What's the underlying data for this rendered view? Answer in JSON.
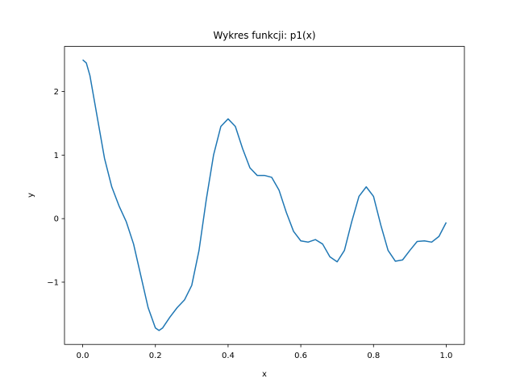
{
  "chart_data": {
    "type": "line",
    "title": "Wykres funkcji: p1(x)",
    "xlabel": "x",
    "ylabel": "y",
    "x": [
      0.0,
      0.01,
      0.02,
      0.04,
      0.06,
      0.08,
      0.1,
      0.12,
      0.14,
      0.16,
      0.18,
      0.2,
      0.21,
      0.22,
      0.24,
      0.26,
      0.28,
      0.3,
      0.32,
      0.34,
      0.36,
      0.38,
      0.4,
      0.42,
      0.44,
      0.46,
      0.48,
      0.5,
      0.52,
      0.54,
      0.56,
      0.58,
      0.6,
      0.62,
      0.64,
      0.66,
      0.68,
      0.7,
      0.72,
      0.74,
      0.76,
      0.78,
      0.8,
      0.82,
      0.84,
      0.86,
      0.88,
      0.9,
      0.92,
      0.94,
      0.96,
      0.98,
      1.0
    ],
    "values": [
      2.5,
      2.45,
      2.25,
      1.6,
      0.95,
      0.5,
      0.2,
      -0.05,
      -0.4,
      -0.9,
      -1.4,
      -1.72,
      -1.76,
      -1.72,
      -1.55,
      -1.4,
      -1.28,
      -1.05,
      -0.5,
      0.3,
      1.0,
      1.45,
      1.57,
      1.45,
      1.1,
      0.8,
      0.68,
      0.68,
      0.65,
      0.45,
      0.1,
      -0.2,
      -0.35,
      -0.37,
      -0.33,
      -0.4,
      -0.6,
      -0.68,
      -0.5,
      -0.05,
      0.35,
      0.5,
      0.35,
      -0.1,
      -0.5,
      -0.67,
      -0.65,
      -0.5,
      -0.36,
      -0.35,
      -0.37,
      -0.28,
      -0.06
    ],
    "color": "#1f77b4",
    "xlim": [
      -0.05,
      1.05
    ],
    "xticks": [
      {
        "value": 0.0,
        "label": "0.0"
      },
      {
        "value": 0.2,
        "label": "0.2"
      },
      {
        "value": 0.4,
        "label": "0.4"
      },
      {
        "value": 0.6,
        "label": "0.6"
      },
      {
        "value": 0.8,
        "label": "0.8"
      },
      {
        "value": 1.0,
        "label": "1.0"
      }
    ],
    "ylim": [
      -1.98,
      2.71
    ],
    "yticks": [
      {
        "value": -1,
        "label": "−1"
      },
      0,
      1,
      2
    ],
    "grid": false
  }
}
